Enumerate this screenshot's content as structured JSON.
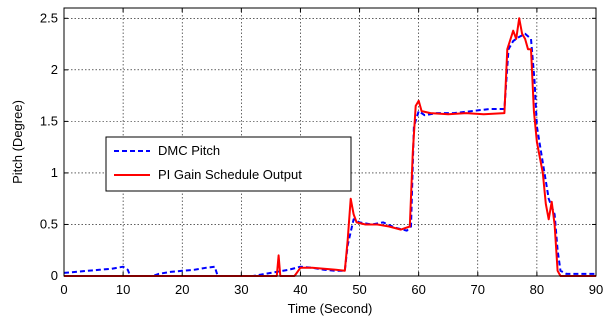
{
  "chart_data": {
    "type": "line",
    "title": "",
    "xlabel": "Time (Second)",
    "ylabel": "Pitch (Degree)",
    "xlim": [
      0,
      90
    ],
    "ylim": [
      0,
      2.6
    ],
    "xticks": [
      0,
      10,
      20,
      30,
      40,
      50,
      60,
      70,
      80,
      90
    ],
    "yticks": [
      0,
      0.5,
      1,
      1.5,
      2,
      2.5
    ],
    "ytick_labels": [
      "0",
      "0.5",
      "1",
      "1.5",
      "2",
      "2.5"
    ],
    "grid": true,
    "legend_position": "middle-left",
    "series": [
      {
        "name": "DMC Pitch",
        "color": "#0000ff",
        "style": "dashed",
        "points": [
          [
            0,
            0.03
          ],
          [
            2,
            0.04
          ],
          [
            4,
            0.05
          ],
          [
            6,
            0.06
          ],
          [
            8,
            0.07
          ],
          [
            10,
            0.09
          ],
          [
            10.8,
            0.06
          ],
          [
            11.2,
            0.0
          ],
          [
            15,
            0.0
          ],
          [
            16,
            0.02
          ],
          [
            18,
            0.04
          ],
          [
            20,
            0.05
          ],
          [
            22,
            0.06
          ],
          [
            24,
            0.08
          ],
          [
            25.5,
            0.09
          ],
          [
            26,
            0.0
          ],
          [
            32,
            0.0
          ],
          [
            34,
            0.02
          ],
          [
            36,
            0.04
          ],
          [
            38,
            0.06
          ],
          [
            40,
            0.09
          ],
          [
            42,
            0.08
          ],
          [
            44,
            0.06
          ],
          [
            46,
            0.05
          ],
          [
            47.5,
            0.05
          ],
          [
            48,
            0.3
          ],
          [
            49,
            0.55
          ],
          [
            50,
            0.52
          ],
          [
            52,
            0.5
          ],
          [
            54,
            0.52
          ],
          [
            56,
            0.47
          ],
          [
            58,
            0.44
          ],
          [
            58.7,
            0.48
          ],
          [
            59.2,
            1.45
          ],
          [
            60,
            1.6
          ],
          [
            61,
            1.56
          ],
          [
            63,
            1.58
          ],
          [
            66,
            1.58
          ],
          [
            69,
            1.6
          ],
          [
            72,
            1.62
          ],
          [
            74.5,
            1.62
          ],
          [
            75.2,
            2.2
          ],
          [
            76,
            2.28
          ],
          [
            77,
            2.32
          ],
          [
            78,
            2.35
          ],
          [
            79,
            2.3
          ],
          [
            79.6,
            1.9
          ],
          [
            80,
            1.45
          ],
          [
            81,
            1.1
          ],
          [
            82,
            0.75
          ],
          [
            83,
            0.6
          ],
          [
            83.5,
            0.25
          ],
          [
            84,
            0.05
          ],
          [
            85,
            0.02
          ],
          [
            90,
            0.02
          ]
        ]
      },
      {
        "name": "PI Gain Schedule Output",
        "color": "#ff0000",
        "style": "solid",
        "points": [
          [
            0,
            0.0
          ],
          [
            36,
            0.0
          ],
          [
            36.3,
            0.2
          ],
          [
            36.6,
            0.0
          ],
          [
            39,
            0.0
          ],
          [
            40,
            0.08
          ],
          [
            42,
            0.08
          ],
          [
            44,
            0.07
          ],
          [
            46,
            0.06
          ],
          [
            47.5,
            0.05
          ],
          [
            48,
            0.35
          ],
          [
            48.5,
            0.75
          ],
          [
            49,
            0.6
          ],
          [
            49.5,
            0.52
          ],
          [
            51,
            0.5
          ],
          [
            53,
            0.5
          ],
          [
            55,
            0.48
          ],
          [
            57,
            0.45
          ],
          [
            58.5,
            0.48
          ],
          [
            59,
            1.2
          ],
          [
            59.5,
            1.65
          ],
          [
            60,
            1.7
          ],
          [
            60.5,
            1.6
          ],
          [
            62,
            1.58
          ],
          [
            65,
            1.57
          ],
          [
            68,
            1.58
          ],
          [
            71,
            1.57
          ],
          [
            74.5,
            1.58
          ],
          [
            75,
            2.2
          ],
          [
            76,
            2.38
          ],
          [
            76.5,
            2.3
          ],
          [
            77,
            2.5
          ],
          [
            77.5,
            2.35
          ],
          [
            78,
            2.3
          ],
          [
            78.5,
            2.2
          ],
          [
            79,
            2.2
          ],
          [
            79.5,
            1.6
          ],
          [
            80,
            1.3
          ],
          [
            81,
            1.0
          ],
          [
            81.5,
            0.7
          ],
          [
            82,
            0.55
          ],
          [
            82.5,
            0.72
          ],
          [
            83,
            0.5
          ],
          [
            83.5,
            0.05
          ],
          [
            84,
            0.0
          ],
          [
            90,
            0.0
          ]
        ]
      }
    ]
  }
}
